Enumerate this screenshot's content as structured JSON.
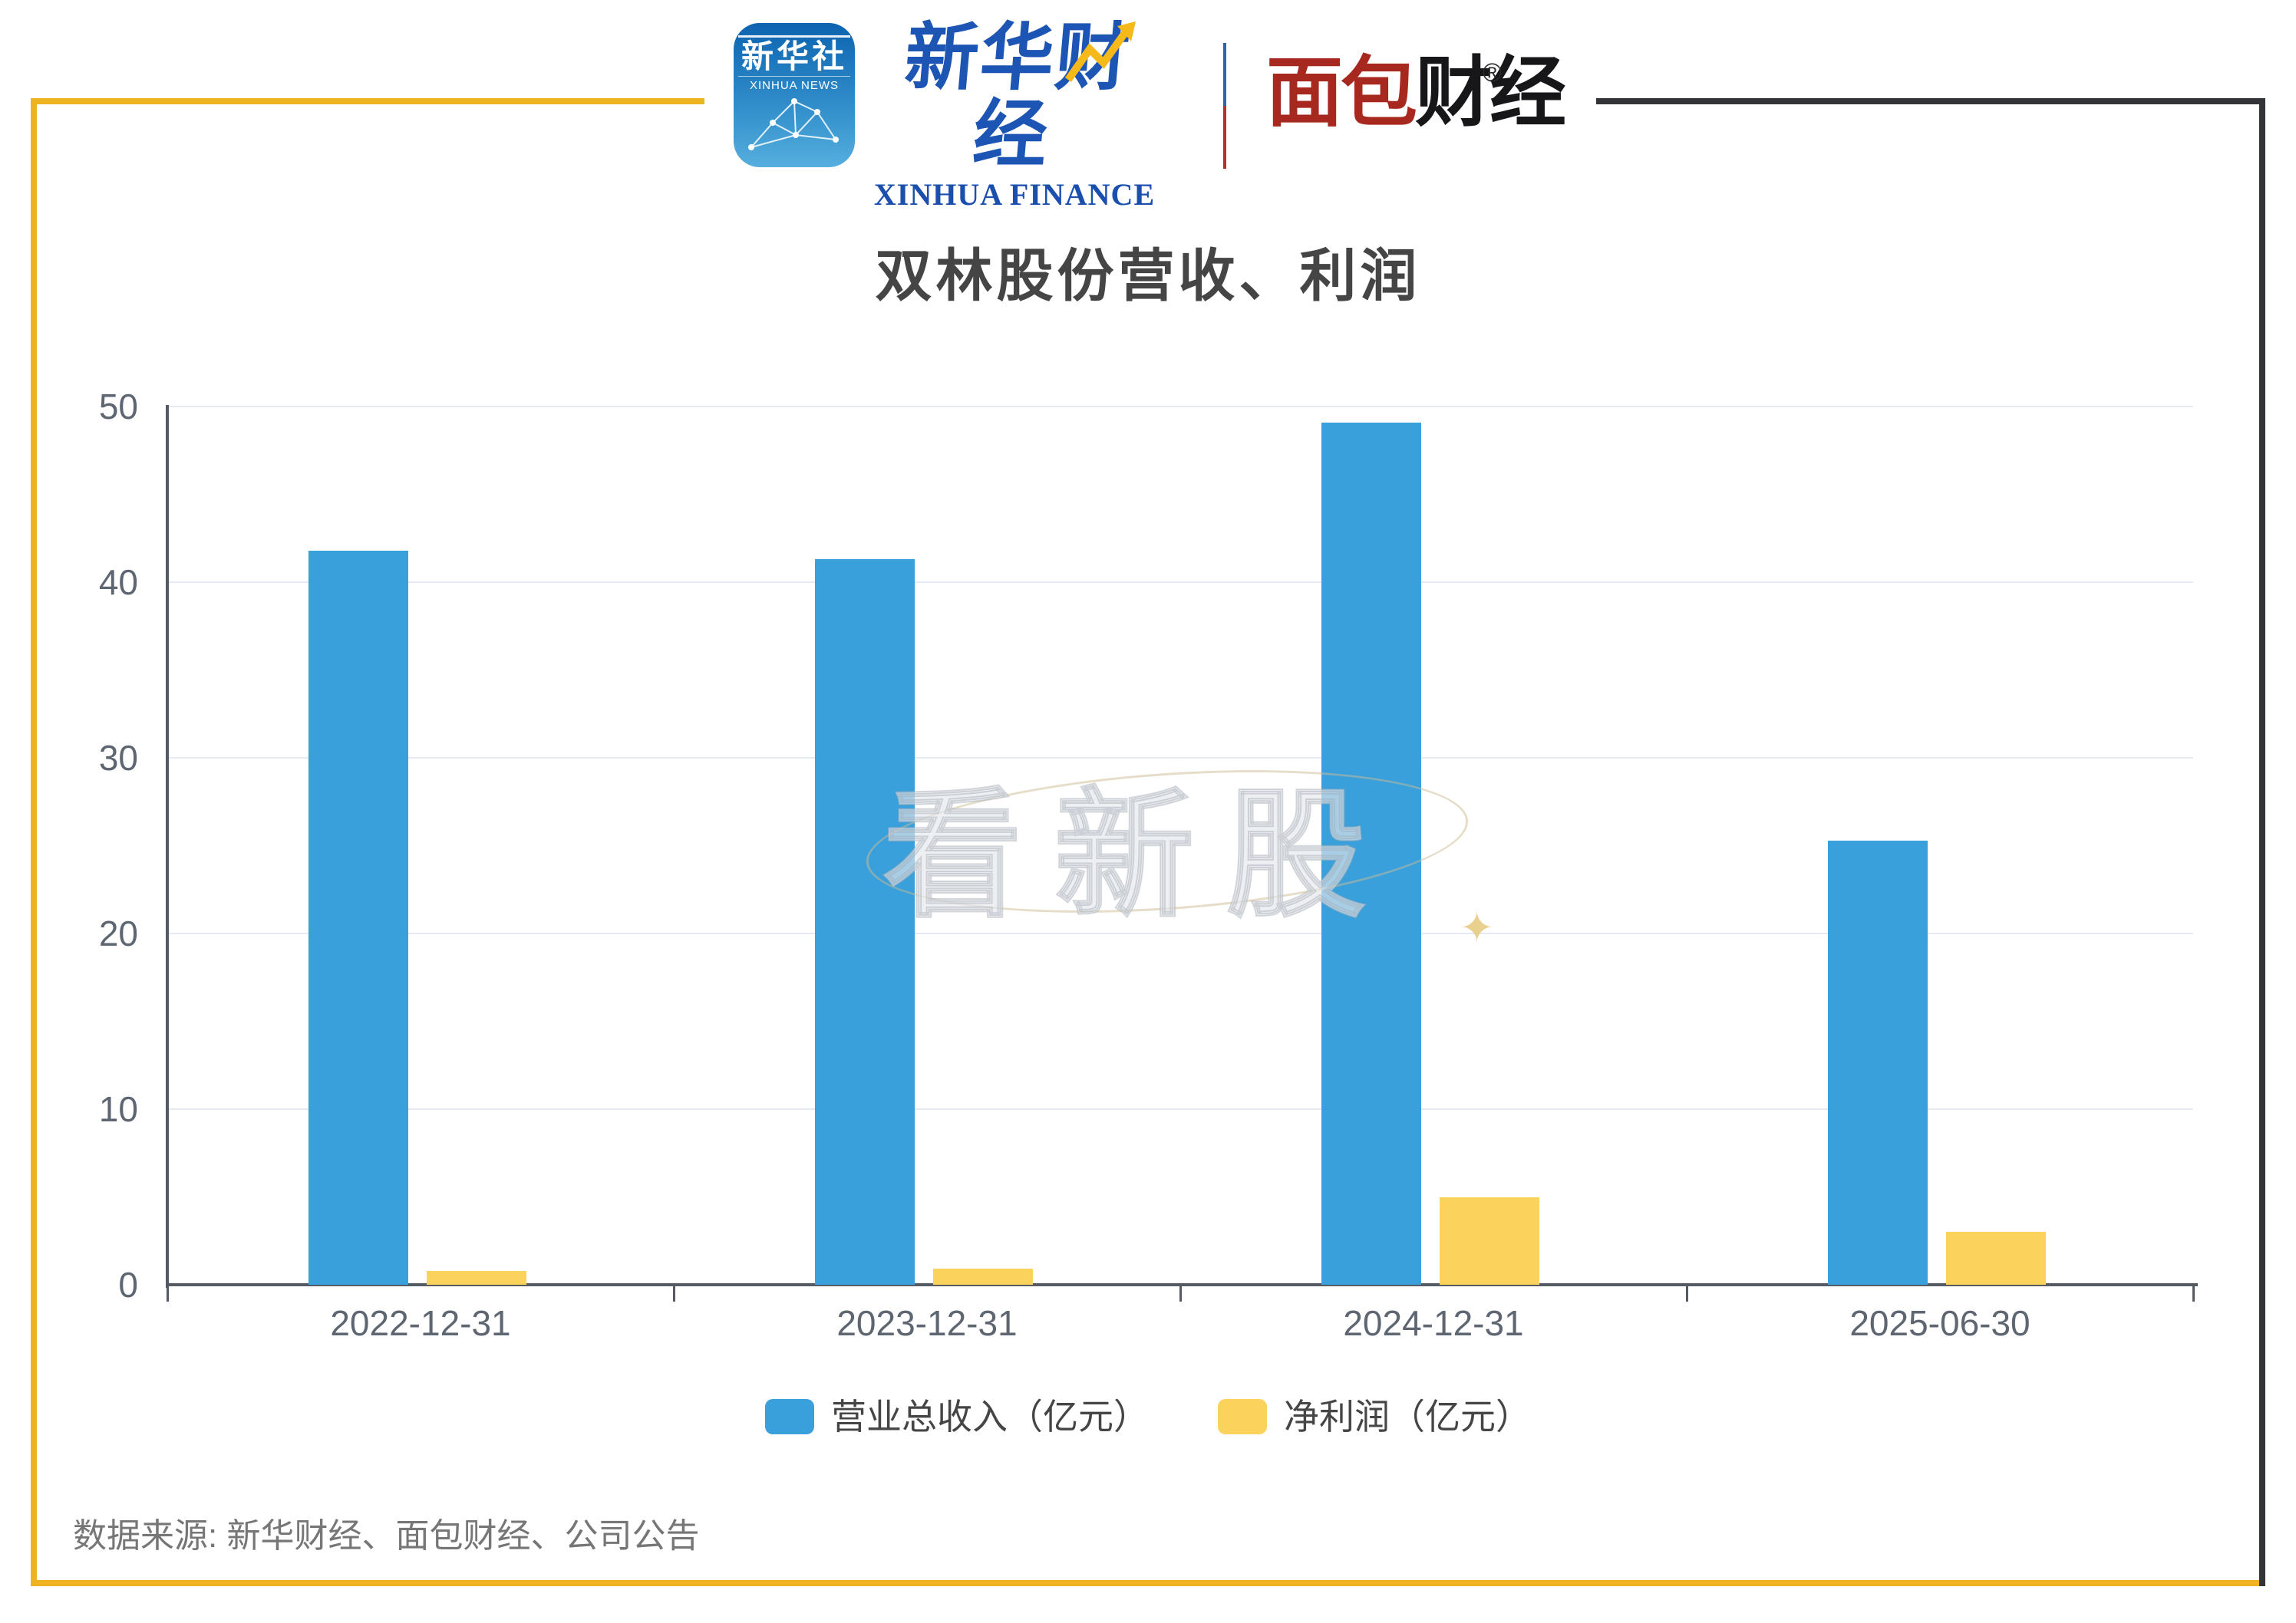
{
  "header": {
    "xinhua_icon": {
      "line1": "新华社",
      "line2": "XINHUA NEWS"
    },
    "xinhua_finance": {
      "cn": "新华财经",
      "en": "XINHUA FINANCE"
    },
    "mianbao": {
      "cn_red": "面包",
      "cn_black": "财经",
      "reg_mark": "®"
    }
  },
  "chart_data": {
    "type": "bar",
    "title": "双林股份营收、利润",
    "categories": [
      "2022-12-31",
      "2023-12-31",
      "2024-12-31",
      "2025-06-30"
    ],
    "series": [
      {
        "name": "营业总收入（亿元）",
        "color": "#3aa0db",
        "values": [
          41.8,
          41.3,
          49.1,
          25.3
        ]
      },
      {
        "name": "净利润（亿元）",
        "color": "#fbd35c",
        "values": [
          0.8,
          0.9,
          5.0,
          3.0
        ]
      }
    ],
    "xlabel": "",
    "ylabel": "",
    "ylim": [
      0,
      50
    ],
    "yticks": [
      0,
      10,
      20,
      30,
      40,
      50
    ],
    "grid": true,
    "legend_position": "bottom"
  },
  "watermark": {
    "text": "看新股",
    "sparkle": "✦"
  },
  "source": {
    "text": "数据来源: 新华财经、面包财经、公司公告"
  },
  "colors": {
    "frame_yellow": "#edb321",
    "frame_dark": "#333437",
    "bar_blue": "#3aa0db",
    "bar_yellow": "#fbd35c",
    "title": "#454545",
    "axis_label": "#5e6671",
    "grid_line": "#e4e9f4",
    "axis_line": "#565b63",
    "source_text": "#767676",
    "xinhua_blue": "#1d55b4",
    "mianbao_red": "#a7281e"
  }
}
